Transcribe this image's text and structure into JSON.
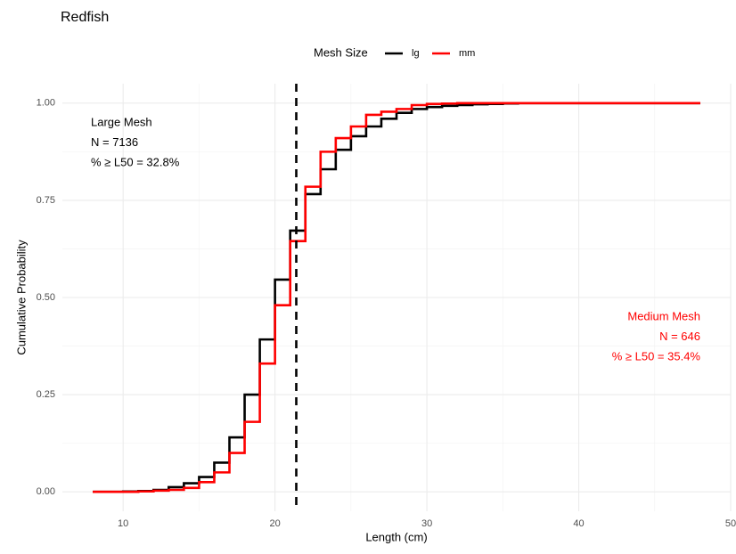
{
  "chart_data": {
    "type": "step",
    "title": "Redfish",
    "x_label": "Length (cm)",
    "y_label": "Cumulative Probability",
    "legend_title": "Mesh Size",
    "legend_position": "top",
    "x": [
      8,
      9,
      10,
      11,
      12,
      13,
      14,
      15,
      16,
      17,
      18,
      19,
      20,
      21,
      22,
      23,
      24,
      25,
      26,
      27,
      28,
      29,
      30,
      31,
      32,
      33,
      34,
      35,
      36,
      37,
      38,
      39,
      40,
      41,
      42,
      43,
      44,
      45,
      46,
      47,
      48
    ],
    "series": [
      {
        "name": "lg",
        "color": "#000000",
        "values": [
          0,
          0,
          0.001,
          0.002,
          0.005,
          0.012,
          0.022,
          0.038,
          0.075,
          0.14,
          0.25,
          0.392,
          0.546,
          0.672,
          0.766,
          0.83,
          0.88,
          0.915,
          0.94,
          0.96,
          0.975,
          0.985,
          0.99,
          0.993,
          0.995,
          0.997,
          0.998,
          0.999,
          1,
          1,
          1,
          1,
          1,
          1,
          1,
          1,
          1,
          1,
          1,
          1,
          1
        ]
      },
      {
        "name": "mm",
        "color": "#ff0000",
        "values": [
          0,
          0,
          0,
          0.001,
          0.003,
          0.005,
          0.01,
          0.025,
          0.05,
          0.1,
          0.18,
          0.33,
          0.48,
          0.645,
          0.785,
          0.875,
          0.91,
          0.94,
          0.97,
          0.978,
          0.985,
          0.995,
          0.998,
          0.999,
          1,
          1,
          1,
          1,
          1,
          1,
          1,
          1,
          1,
          1,
          1,
          1,
          1,
          1,
          1,
          1,
          1
        ]
      }
    ],
    "reference_line": {
      "x": 21.4,
      "color": "#000000"
    },
    "xlim": [
      6,
      50
    ],
    "xticks": [
      10,
      20,
      30,
      40,
      50
    ],
    "ylim": [
      -0.05,
      1.05
    ],
    "yticks": [
      {
        "value": 0,
        "label": "0.00"
      },
      {
        "value": 0.25,
        "label": "0.25"
      },
      {
        "value": 0.5,
        "label": "0.50"
      },
      {
        "value": 0.75,
        "label": "0.75"
      },
      {
        "value": 1,
        "label": "1.00"
      }
    ],
    "grid": true,
    "minor_grid": true,
    "annotations": [
      {
        "lines": [
          "Large Mesh",
          "N = 7136",
          "% ≥ L50 = 32.8%"
        ],
        "color": "#000000",
        "position": "top-left"
      },
      {
        "lines": [
          "Medium Mesh",
          "N = 646",
          "% ≥ L50 = 35.4%"
        ],
        "color": "#ff0000",
        "position": "bottom-right"
      }
    ]
  }
}
